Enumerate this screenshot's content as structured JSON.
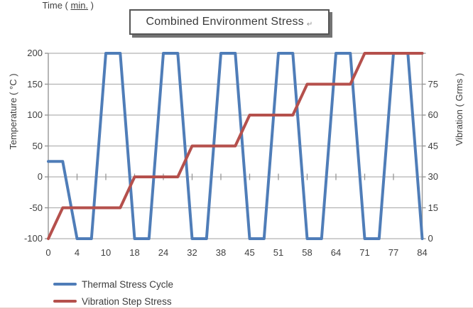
{
  "title_box": {
    "text": "Combined Environment Stress",
    "mark": "↵"
  },
  "axes": {
    "left": {
      "title": "Temperature ( °C )",
      "tick_labels": [
        "200",
        "150",
        "100",
        "50",
        "0",
        "-50",
        "-100"
      ]
    },
    "right": {
      "title": "Vibration ( Grms )",
      "tick_labels": [
        "",
        "75",
        "60",
        "45",
        "30",
        "15",
        "0"
      ]
    },
    "x": {
      "title_pre": "Time ( ",
      "title_underlined": "min.",
      "title_post": " )",
      "tick_labels": [
        "0",
        "4",
        "10",
        "18",
        "24",
        "32",
        "38",
        "45",
        "51",
        "58",
        "64",
        "71",
        "77",
        "84"
      ]
    }
  },
  "legend": [
    {
      "label": "Thermal Stress Cycle",
      "color": "#4f7db8"
    },
    {
      "label": "Vibration Step Stress",
      "color": "#b5504c"
    }
  ],
  "colors": {
    "thermal_line": "#4f7db8",
    "vibration_line": "#b5504c",
    "gridline": "#b2b2b2",
    "axis_line": "#969696",
    "text": "#3f3f3f"
  },
  "chart_data": {
    "type": "line",
    "title": "Combined Environment Stress",
    "xlabel": "Time ( min. )",
    "x_axis_kind": "categorical, 27 uniform slots (0–26), labels shown at even slots",
    "x_tick_labels_min": [
      0,
      4,
      10,
      18,
      24,
      32,
      38,
      45,
      51,
      58,
      64,
      71,
      77,
      84
    ],
    "left_axis": {
      "label": "Temperature ( °C )",
      "range": [
        -100,
        200
      ],
      "major_unit": 50
    },
    "right_axis": {
      "label": "Vibration ( Grms )",
      "range": [
        0,
        90
      ],
      "major_unit": 15,
      "top_tick_unlabeled": true
    },
    "grid": "horizontal only",
    "legend_position": "bottom-left",
    "series": [
      {
        "name": "Thermal Stress Cycle",
        "axis": "left",
        "unit": "°C",
        "color": "#4f7db8",
        "points_slot_value": [
          [
            0,
            25
          ],
          [
            1,
            25
          ],
          [
            2,
            -100
          ],
          [
            3,
            -100
          ],
          [
            4,
            200
          ],
          [
            5,
            200
          ],
          [
            6,
            -100
          ],
          [
            7,
            -100
          ],
          [
            8,
            200
          ],
          [
            9,
            200
          ],
          [
            10,
            -100
          ],
          [
            11,
            -100
          ],
          [
            12,
            200
          ],
          [
            13,
            200
          ],
          [
            14,
            -100
          ],
          [
            15,
            -100
          ],
          [
            16,
            200
          ],
          [
            17,
            200
          ],
          [
            18,
            -100
          ],
          [
            19,
            -100
          ],
          [
            20,
            200
          ],
          [
            21,
            200
          ],
          [
            22,
            -100
          ],
          [
            23,
            -100
          ],
          [
            24,
            200
          ],
          [
            25,
            200
          ],
          [
            26,
            -100
          ]
        ]
      },
      {
        "name": "Vibration Step Stress",
        "axis": "right",
        "unit": "Grms",
        "color": "#b5504c",
        "points_slot_value": [
          [
            0,
            0
          ],
          [
            1,
            15
          ],
          [
            5,
            15
          ],
          [
            6,
            30
          ],
          [
            9,
            30
          ],
          [
            10,
            45
          ],
          [
            13,
            45
          ],
          [
            14,
            60
          ],
          [
            17,
            60
          ],
          [
            18,
            75
          ],
          [
            21,
            75
          ],
          [
            22,
            90
          ],
          [
            26,
            90
          ]
        ]
      }
    ]
  }
}
